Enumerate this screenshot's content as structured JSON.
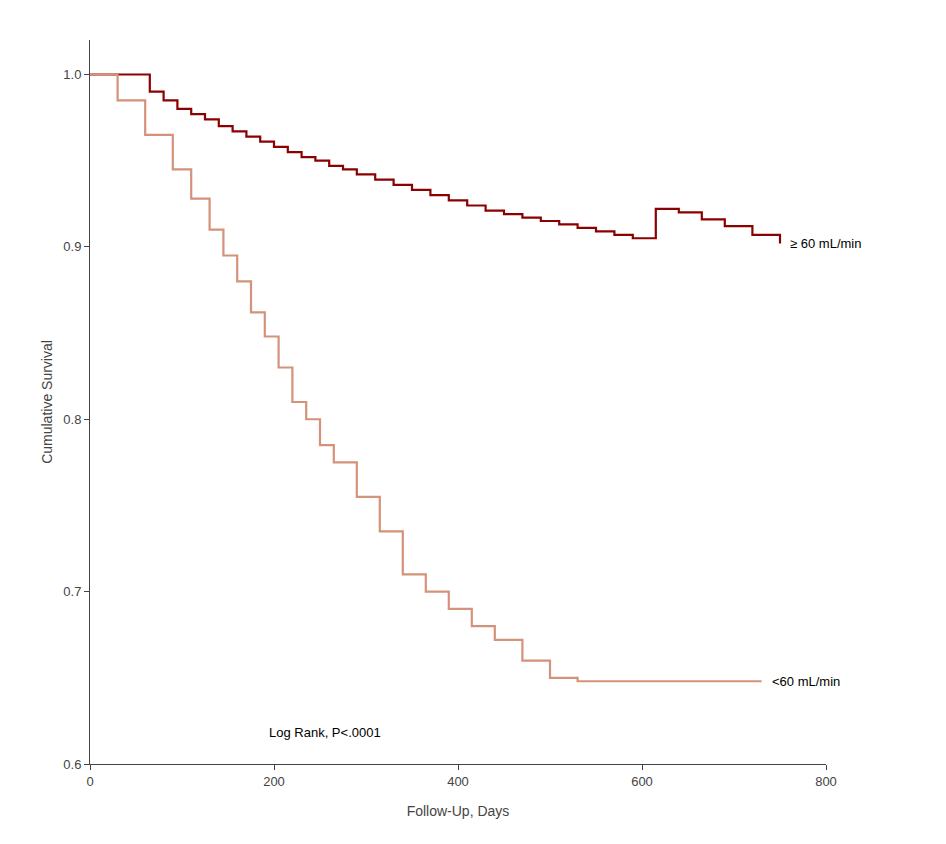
{
  "chart_data": {
    "type": "line",
    "xlabel": "Follow-Up, Days",
    "ylabel": "Cumulative Survival",
    "xlim": [
      0,
      800
    ],
    "ylim": [
      0.6,
      1.02
    ],
    "xticks": [
      0,
      200,
      400,
      600,
      800
    ],
    "yticks": [
      0.6,
      0.7,
      0.8,
      0.9,
      {
        "value": 1.0,
        "label": "1.0"
      }
    ],
    "grid": false,
    "annotations": [
      "Log Rank, P<.0001"
    ],
    "series": [
      {
        "name": "≥ 60 mL/min",
        "color": "#8B0000",
        "line_style": "step",
        "x": [
          0,
          50,
          65,
          80,
          95,
          110,
          125,
          140,
          155,
          170,
          185,
          200,
          215,
          230,
          245,
          260,
          275,
          290,
          310,
          330,
          350,
          370,
          390,
          410,
          430,
          450,
          470,
          490,
          510,
          530,
          550,
          570,
          590,
          615,
          640,
          665,
          690,
          720,
          750
        ],
        "values": [
          1.0,
          1.0,
          0.99,
          0.985,
          0.98,
          0.977,
          0.974,
          0.97,
          0.967,
          0.964,
          0.961,
          0.958,
          0.955,
          0.952,
          0.95,
          0.947,
          0.945,
          0.942,
          0.939,
          0.936,
          0.933,
          0.93,
          0.927,
          0.924,
          0.921,
          0.919,
          0.917,
          0.915,
          0.913,
          0.911,
          0.909,
          0.907,
          0.905,
          0.922,
          0.92,
          0.916,
          0.912,
          0.907,
          0.902
        ]
      },
      {
        "name": "<60 mL/min",
        "color": "#D4927A",
        "line_style": "step",
        "x": [
          0,
          30,
          60,
          90,
          110,
          130,
          145,
          160,
          175,
          190,
          205,
          220,
          235,
          250,
          265,
          290,
          315,
          340,
          365,
          390,
          415,
          440,
          470,
          500,
          530,
          570,
          610,
          640,
          670,
          700,
          730
        ],
        "values": [
          1.0,
          0.985,
          0.965,
          0.945,
          0.928,
          0.91,
          0.895,
          0.88,
          0.862,
          0.848,
          0.83,
          0.81,
          0.8,
          0.785,
          0.775,
          0.755,
          0.735,
          0.71,
          0.7,
          0.69,
          0.68,
          0.672,
          0.66,
          0.65,
          0.648,
          0.648,
          0.648,
          0.648,
          0.648,
          0.648,
          0.648
        ]
      }
    ]
  }
}
